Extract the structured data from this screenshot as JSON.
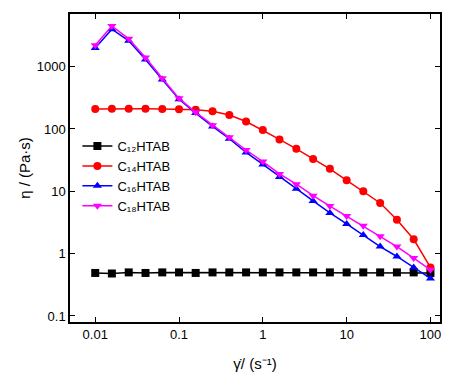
{
  "chart_data": {
    "type": "line",
    "x_label": "γ̇/ (s⁻¹)",
    "y_label": "η / (Pa·s)",
    "log": true,
    "grid": false,
    "legend": "left",
    "xlim": [
      0.005,
      130
    ],
    "ylim": [
      0.08,
      7000
    ],
    "xticks": [
      0.01,
      0.1,
      1,
      10,
      100
    ],
    "yticks": [
      0.1,
      1,
      10,
      100,
      1000
    ],
    "x": [
      0.01,
      0.0158,
      0.0251,
      0.0398,
      0.0631,
      0.1,
      0.158,
      0.251,
      0.398,
      0.631,
      1,
      1.58,
      2.51,
      3.98,
      6.31,
      10,
      15.8,
      25.1,
      39.8,
      63.1,
      100
    ],
    "series": [
      {
        "name": "C₁₂HTAB",
        "color": "#000000",
        "marker": "square",
        "values": [
          0.49,
          0.48,
          0.5,
          0.49,
          0.5,
          0.5,
          0.49,
          0.5,
          0.5,
          0.5,
          0.5,
          0.5,
          0.5,
          0.5,
          0.5,
          0.5,
          0.5,
          0.5,
          0.5,
          0.5,
          0.49
        ]
      },
      {
        "name": "C₁₄HTAB",
        "color": "#ff0000",
        "marker": "circle",
        "values": [
          210,
          212,
          212,
          211,
          210,
          208,
          203,
          192,
          168,
          132,
          96,
          68,
          48,
          33,
          23,
          15,
          10,
          6.5,
          3.5,
          1.7,
          0.6
        ]
      },
      {
        "name": "C₁₆HTAB",
        "color": "#0000ff",
        "marker": "triangle-up",
        "values": [
          2000,
          4000,
          2600,
          1300,
          620,
          300,
          180,
          110,
          70,
          42,
          27,
          17,
          11,
          7,
          4.5,
          3,
          2,
          1.3,
          0.9,
          0.6,
          0.4
        ]
      },
      {
        "name": "C₁₈HTAB",
        "color": "#ff00ff",
        "marker": "triangle-down",
        "values": [
          2200,
          4500,
          2800,
          1400,
          650,
          310,
          185,
          115,
          74,
          46,
          30,
          19,
          13,
          8.5,
          5.8,
          4,
          2.8,
          1.9,
          1.3,
          0.85,
          0.55
        ]
      }
    ]
  }
}
